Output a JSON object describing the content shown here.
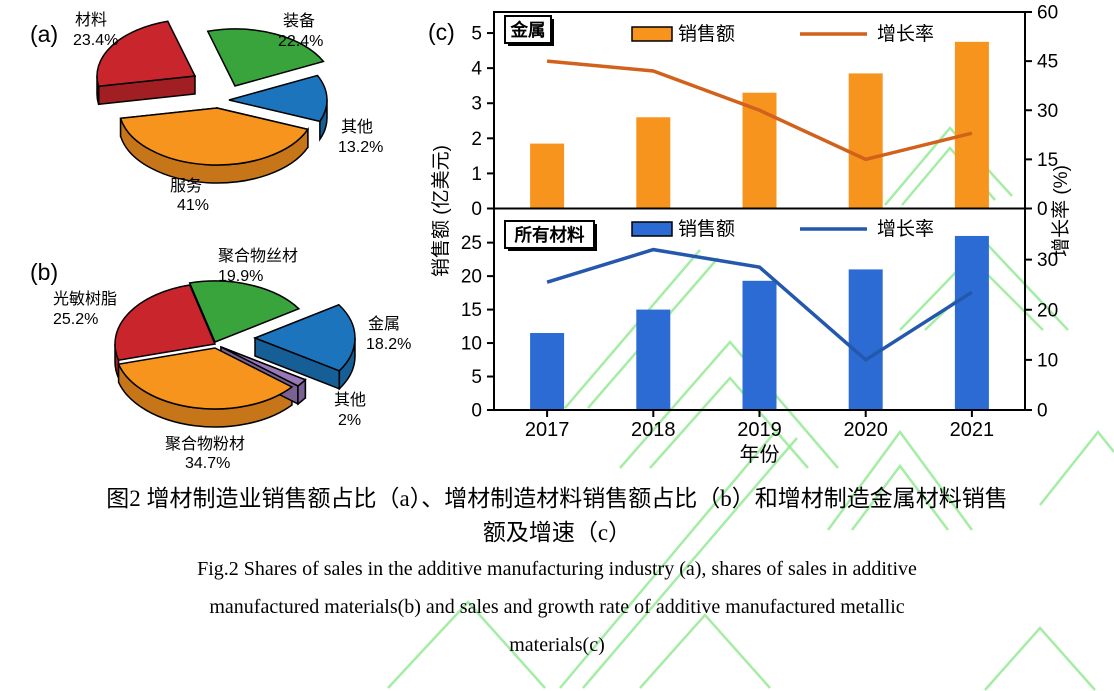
{
  "colors": {
    "background": "#ffffff",
    "axis": "#000000",
    "watermark_green": "#8fe88f",
    "pie_red": "#c9252c",
    "pie_green": "#3aa43c",
    "pie_blue": "#1c75bc",
    "pie_orange": "#f7941e",
    "pie_purple": "#9878b8",
    "bar_orange": "#f7941e",
    "line_orange": "#d2611c",
    "bar_blue": "#2b6bd3",
    "line_blue": "#2458ac"
  },
  "figure": {
    "caption_cn_line1": "图2  增材制造业销售额占比（a）、增材制造材料销售额占比（b）和增材制造金属材料销售",
    "caption_cn_line2": "额及增速（c）",
    "caption_en_line1": "Fig.2 Shares of sales in the additive manufacturing industry (a), shares of sales in additive",
    "caption_en_line2": "manufactured materials(b) and sales and growth rate of additive manufactured metallic",
    "caption_en_line3": "materials(c)"
  },
  "chart_data": [
    {
      "id": "pie_a",
      "type": "pie",
      "tag": "(a)",
      "slices": [
        {
          "label": "装备",
          "value": 22.4,
          "display": "22.4%",
          "color": "#3aa43c"
        },
        {
          "label": "材料",
          "value": 23.4,
          "display": "23.4%",
          "color": "#c9252c"
        },
        {
          "label": "其他",
          "value": 13.2,
          "display": "13.2%",
          "color": "#1c75bc"
        },
        {
          "label": "服务",
          "value": 41,
          "display": "41%",
          "color": "#f7941e"
        }
      ]
    },
    {
      "id": "pie_b",
      "type": "pie",
      "tag": "(b)",
      "slices": [
        {
          "label": "聚合物丝材",
          "value": 19.9,
          "display": "19.9%",
          "color": "#3aa43c"
        },
        {
          "label": "光敏树脂",
          "value": 25.2,
          "display": "25.2%",
          "color": "#c9252c"
        },
        {
          "label": "聚合物粉材",
          "value": 34.7,
          "display": "34.7%",
          "color": "#f7941e"
        },
        {
          "label": "其他",
          "value": 2,
          "display": "2%",
          "color": "#9878b8"
        },
        {
          "label": "金属",
          "value": 18.2,
          "display": "18.2%",
          "color": "#1c75bc"
        }
      ]
    },
    {
      "id": "metal_panel",
      "type": "bar+line",
      "tag": "(c)",
      "panel_label": "金属",
      "categories": [
        "2017",
        "2018",
        "2019",
        "2020",
        "2021"
      ],
      "series": [
        {
          "name": "销售额",
          "type": "bar",
          "axis": "left",
          "color": "#f7941e",
          "values": [
            1.85,
            2.6,
            3.3,
            3.85,
            4.75
          ]
        },
        {
          "name": "增长率",
          "type": "line",
          "axis": "right",
          "color": "#d2611c",
          "values": [
            45,
            42,
            30,
            15,
            23
          ]
        }
      ],
      "left_axis": {
        "ticks": [
          0,
          1,
          2,
          3,
          4,
          5
        ],
        "range": [
          0,
          5.6
        ]
      },
      "right_axis": {
        "ticks": [
          0,
          15,
          30,
          45,
          60
        ],
        "range": [
          0,
          60
        ]
      }
    },
    {
      "id": "all_materials_panel",
      "type": "bar+line",
      "panel_label": "所有材料",
      "categories": [
        "2017",
        "2018",
        "2019",
        "2020",
        "2021"
      ],
      "series": [
        {
          "name": "销售额",
          "type": "bar",
          "axis": "left",
          "color": "#2b6bd3",
          "values": [
            11.5,
            15,
            19.3,
            21,
            26
          ]
        },
        {
          "name": "增长率",
          "type": "line",
          "axis": "right",
          "color": "#2458ac",
          "values": [
            25.5,
            32,
            28.5,
            10,
            23.5
          ]
        }
      ],
      "left_axis": {
        "ticks": [
          0,
          5,
          10,
          15,
          20,
          25
        ],
        "range": [
          0,
          30.1
        ]
      },
      "right_axis": {
        "ticks": [
          0,
          10,
          20,
          30
        ],
        "range": [
          0,
          40.2
        ]
      },
      "xlabel": "年份",
      "ylabel_left": "销售额 (亿美元)",
      "ylabel_right": "增长率 (%)"
    }
  ]
}
